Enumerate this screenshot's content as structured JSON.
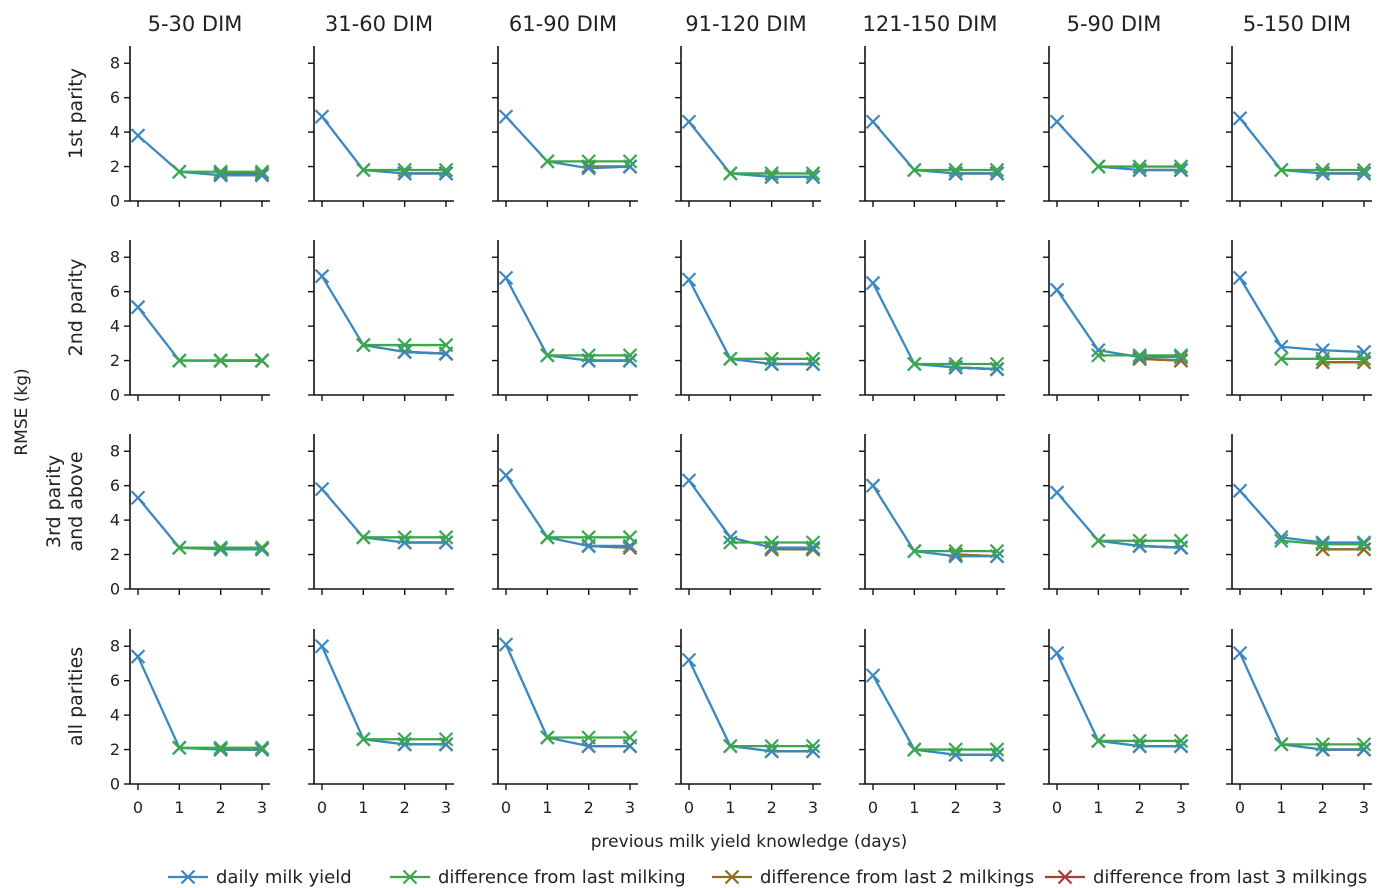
{
  "chart_data": {
    "type": "line",
    "grid": false,
    "legend_position": "bottom",
    "column_titles": [
      "5-30 DIM",
      "31-60 DIM",
      "61-90 DIM",
      "91-120 DIM",
      "121-150 DIM",
      "5-90 DIM",
      "5-150 DIM"
    ],
    "row_labels": [
      [
        "1st parity"
      ],
      [
        "2nd parity"
      ],
      [
        "3rd parity",
        "and above"
      ],
      [
        "all parities"
      ]
    ],
    "ylabel": "RMSE (kg)",
    "xlabel": "previous milk yield knowledge (days)",
    "x": [
      0,
      1,
      2,
      3
    ],
    "x_ticks": [
      "0",
      "1",
      "2",
      "3"
    ],
    "ylim": [
      0,
      9
    ],
    "y_ticks": [
      "0",
      "2",
      "4",
      "6",
      "8"
    ],
    "series_legend": [
      {
        "name": "daily milk yield",
        "color": "#3b87c0"
      },
      {
        "name": "difference from last milking",
        "color": "#3aa84a"
      },
      {
        "name": "difference from last 2 milkings",
        "color": "#8f6f1f"
      },
      {
        "name": "difference from last 3 milkings",
        "color": "#a83a3a"
      }
    ],
    "panels": [
      [
        {
          "daily": [
            3.8,
            1.7,
            1.5,
            1.5
          ],
          "diff1": [
            null,
            1.7,
            1.7,
            1.7
          ],
          "diff2": [
            null,
            null,
            1.6,
            1.6
          ],
          "diff3": [
            null,
            null,
            1.5,
            1.5
          ]
        },
        {
          "daily": [
            4.9,
            1.8,
            1.6,
            1.6
          ],
          "diff1": [
            null,
            1.8,
            1.8,
            1.8
          ],
          "diff2": [
            null,
            null,
            1.6,
            1.6
          ],
          "diff3": [
            null,
            null,
            1.6,
            1.6
          ]
        },
        {
          "daily": [
            4.9,
            2.3,
            1.9,
            2.0
          ],
          "diff1": [
            null,
            2.3,
            2.3,
            2.3
          ],
          "diff2": [
            null,
            null,
            2.0,
            2.0
          ],
          "diff3": [
            null,
            null,
            2.0,
            2.0
          ]
        },
        {
          "daily": [
            4.6,
            1.6,
            1.4,
            1.4
          ],
          "diff1": [
            null,
            1.6,
            1.6,
            1.6
          ],
          "diff2": [
            null,
            null,
            1.4,
            1.4
          ],
          "diff3": [
            null,
            null,
            1.4,
            1.4
          ]
        },
        {
          "daily": [
            4.6,
            1.8,
            1.6,
            1.6
          ],
          "diff1": [
            null,
            1.8,
            1.8,
            1.8
          ],
          "diff2": [
            null,
            null,
            1.6,
            1.6
          ],
          "diff3": [
            null,
            null,
            1.6,
            1.6
          ]
        },
        {
          "daily": [
            4.6,
            2.0,
            1.8,
            1.8
          ],
          "diff1": [
            null,
            2.0,
            2.0,
            2.0
          ],
          "diff2": [
            null,
            null,
            1.8,
            1.8
          ],
          "diff3": [
            null,
            null,
            1.8,
            1.8
          ]
        },
        {
          "daily": [
            4.8,
            1.8,
            1.6,
            1.6
          ],
          "diff1": [
            null,
            1.8,
            1.8,
            1.8
          ],
          "diff2": [
            null,
            null,
            1.6,
            1.6
          ],
          "diff3": [
            null,
            null,
            1.6,
            1.6
          ]
        }
      ],
      [
        {
          "daily": [
            5.1,
            2.0,
            2.0,
            2.0
          ],
          "diff1": [
            null,
            2.0,
            2.0,
            2.0
          ],
          "diff2": [
            null,
            null,
            2.0,
            2.0
          ],
          "diff3": [
            null,
            null,
            2.0,
            2.0
          ]
        },
        {
          "daily": [
            6.9,
            2.9,
            2.5,
            2.4
          ],
          "diff1": [
            null,
            2.9,
            2.9,
            2.9
          ],
          "diff2": [
            null,
            null,
            2.5,
            2.4
          ],
          "diff3": [
            null,
            null,
            2.5,
            2.4
          ]
        },
        {
          "daily": [
            6.8,
            2.3,
            2.0,
            2.0
          ],
          "diff1": [
            null,
            2.3,
            2.3,
            2.3
          ],
          "diff2": [
            null,
            null,
            2.0,
            2.0
          ],
          "diff3": [
            null,
            null,
            2.0,
            2.0
          ]
        },
        {
          "daily": [
            6.7,
            2.1,
            1.8,
            1.8
          ],
          "diff1": [
            null,
            2.1,
            2.1,
            2.1
          ],
          "diff2": [
            null,
            null,
            1.8,
            1.8
          ],
          "diff3": [
            null,
            null,
            1.8,
            1.8
          ]
        },
        {
          "daily": [
            6.5,
            1.8,
            1.6,
            1.5
          ],
          "diff1": [
            null,
            1.8,
            1.8,
            1.8
          ],
          "diff2": [
            null,
            null,
            1.6,
            1.5
          ],
          "diff3": [
            null,
            null,
            1.6,
            1.5
          ]
        },
        {
          "daily": [
            6.1,
            2.6,
            2.2,
            2.2
          ],
          "diff1": [
            null,
            2.3,
            2.3,
            2.3
          ],
          "diff2": [
            null,
            null,
            2.1,
            2.0
          ],
          "diff3": [
            null,
            null,
            2.1,
            2.0
          ]
        },
        {
          "daily": [
            6.8,
            2.8,
            2.6,
            2.5
          ],
          "diff1": [
            null,
            2.1,
            2.1,
            2.1
          ],
          "diff2": [
            null,
            null,
            1.9,
            1.9
          ],
          "diff3": [
            null,
            null,
            1.9,
            1.9
          ]
        }
      ],
      [
        {
          "daily": [
            5.3,
            2.4,
            2.3,
            2.3
          ],
          "diff1": [
            null,
            2.4,
            2.4,
            2.4
          ],
          "diff2": [
            null,
            null,
            2.3,
            2.3
          ],
          "diff3": [
            null,
            null,
            2.3,
            2.3
          ]
        },
        {
          "daily": [
            5.8,
            3.0,
            2.7,
            2.7
          ],
          "diff1": [
            null,
            3.0,
            3.0,
            3.0
          ],
          "diff2": [
            null,
            null,
            2.7,
            2.7
          ],
          "diff3": [
            null,
            null,
            2.7,
            2.7
          ]
        },
        {
          "daily": [
            6.6,
            3.0,
            2.5,
            2.5
          ],
          "diff1": [
            null,
            3.0,
            3.0,
            3.0
          ],
          "diff2": [
            null,
            null,
            2.5,
            2.4
          ],
          "diff3": [
            null,
            null,
            2.5,
            2.4
          ]
        },
        {
          "daily": [
            6.3,
            3.0,
            2.4,
            2.4
          ],
          "diff1": [
            null,
            2.7,
            2.7,
            2.7
          ],
          "diff2": [
            null,
            null,
            2.3,
            2.3
          ],
          "diff3": [
            null,
            null,
            2.3,
            2.3
          ]
        },
        {
          "daily": [
            6.0,
            2.2,
            1.9,
            1.9
          ],
          "diff1": [
            null,
            2.2,
            2.2,
            2.2
          ],
          "diff2": [
            null,
            null,
            2.0,
            1.9
          ],
          "diff3": [
            null,
            null,
            2.0,
            1.9
          ]
        },
        {
          "daily": [
            5.6,
            2.8,
            2.5,
            2.4
          ],
          "diff1": [
            null,
            2.8,
            2.8,
            2.8
          ],
          "diff2": [
            null,
            null,
            2.5,
            2.4
          ],
          "diff3": [
            null,
            null,
            2.5,
            2.4
          ]
        },
        {
          "daily": [
            5.7,
            3.0,
            2.7,
            2.7
          ],
          "diff1": [
            null,
            2.8,
            2.6,
            2.6
          ],
          "diff2": [
            null,
            null,
            2.3,
            2.3
          ],
          "diff3": [
            null,
            null,
            2.3,
            2.3
          ]
        }
      ],
      [
        {
          "daily": [
            7.4,
            2.1,
            2.0,
            2.0
          ],
          "diff1": [
            null,
            2.1,
            2.1,
            2.1
          ],
          "diff2": [
            null,
            null,
            2.0,
            2.0
          ],
          "diff3": [
            null,
            null,
            2.0,
            2.0
          ]
        },
        {
          "daily": [
            8.0,
            2.6,
            2.3,
            2.3
          ],
          "diff1": [
            null,
            2.6,
            2.6,
            2.6
          ],
          "diff2": [
            null,
            null,
            2.3,
            2.3
          ],
          "diff3": [
            null,
            null,
            2.3,
            2.3
          ]
        },
        {
          "daily": [
            8.1,
            2.7,
            2.2,
            2.2
          ],
          "diff1": [
            null,
            2.7,
            2.7,
            2.7
          ],
          "diff2": [
            null,
            null,
            2.2,
            2.2
          ],
          "diff3": [
            null,
            null,
            2.2,
            2.2
          ]
        },
        {
          "daily": [
            7.2,
            2.2,
            1.9,
            1.9
          ],
          "diff1": [
            null,
            2.2,
            2.2,
            2.2
          ],
          "diff2": [
            null,
            null,
            1.9,
            1.9
          ],
          "diff3": [
            null,
            null,
            1.9,
            1.9
          ]
        },
        {
          "daily": [
            6.3,
            2.0,
            1.7,
            1.7
          ],
          "diff1": [
            null,
            2.0,
            2.0,
            2.0
          ],
          "diff2": [
            null,
            null,
            1.7,
            1.7
          ],
          "diff3": [
            null,
            null,
            1.7,
            1.7
          ]
        },
        {
          "daily": [
            7.6,
            2.5,
            2.2,
            2.2
          ],
          "diff1": [
            null,
            2.5,
            2.5,
            2.5
          ],
          "diff2": [
            null,
            null,
            2.2,
            2.2
          ],
          "diff3": [
            null,
            null,
            2.2,
            2.2
          ]
        },
        {
          "daily": [
            7.6,
            2.3,
            2.0,
            2.0
          ],
          "diff1": [
            null,
            2.3,
            2.3,
            2.3
          ],
          "diff2": [
            null,
            null,
            2.0,
            2.0
          ],
          "diff3": [
            null,
            null,
            2.0,
            2.0
          ]
        }
      ]
    ]
  }
}
